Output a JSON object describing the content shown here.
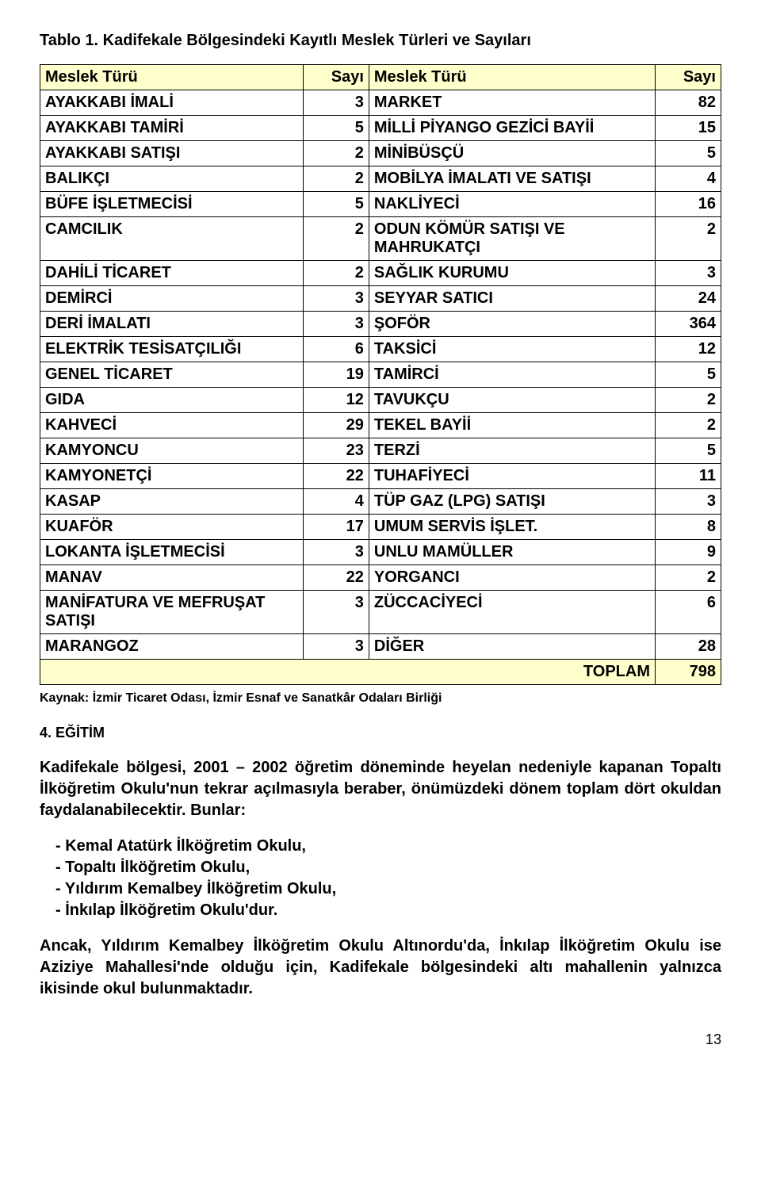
{
  "caption": "Tablo 1. Kadifekale Bölgesindeki Kayıtlı Meslek Türleri ve Sayıları",
  "headers": [
    "Meslek Türü",
    "Sayı",
    "Meslek Türü",
    "Sayı"
  ],
  "rows": [
    [
      "AYAKKABI İMALİ",
      "3",
      "MARKET",
      "82"
    ],
    [
      "AYAKKABI TAMİRİ",
      "5",
      "MİLLİ PİYANGO GEZİCİ BAYİİ",
      "15"
    ],
    [
      "AYAKKABI SATIŞI",
      "2",
      "MİNİBÜSÇÜ",
      "5"
    ],
    [
      "BALIKÇI",
      "2",
      "MOBİLYA İMALATI VE SATIŞI",
      "4"
    ],
    [
      "BÜFE İŞLETMECİSİ",
      "5",
      "NAKLİYECİ",
      "16"
    ],
    [
      "CAMCILIK",
      "2",
      "ODUN KÖMÜR SATIŞI VE MAHRUKATÇI",
      "2"
    ],
    [
      "DAHİLİ TİCARET",
      "2",
      "SAĞLIK KURUMU",
      "3"
    ],
    [
      "DEMİRCİ",
      "3",
      "SEYYAR SATICI",
      "24"
    ],
    [
      "DERİ İMALATI",
      "3",
      "ŞOFÖR",
      "364"
    ],
    [
      "ELEKTRİK TESİSATÇILIĞI",
      "6",
      "TAKSİCİ",
      "12"
    ],
    [
      "GENEL TİCARET",
      "19",
      "TAMİRCİ",
      "5"
    ],
    [
      "GIDA",
      "12",
      "TAVUKÇU",
      "2"
    ],
    [
      "KAHVECİ",
      "29",
      "TEKEL BAYİİ",
      "2"
    ],
    [
      "KAMYONCU",
      "23",
      "TERZİ",
      "5"
    ],
    [
      "KAMYONETÇİ",
      "22",
      "TUHAFİYECİ",
      "11"
    ],
    [
      "KASAP",
      "4",
      "TÜP GAZ (LPG) SATIŞI",
      "3"
    ],
    [
      "KUAFÖR",
      "17",
      "UMUM SERVİS İŞLET.",
      "8"
    ],
    [
      "LOKANTA İŞLETMECİSİ",
      "3",
      "UNLU MAMÜLLER",
      "9"
    ],
    [
      "MANAV",
      "22",
      "YORGANCI",
      "2"
    ],
    [
      "MANİFATURA VE MEFRUŞAT SATIŞI",
      "3",
      "ZÜCCACİYECİ",
      "6"
    ],
    [
      "MARANGOZ",
      "3",
      "DİĞER",
      "28"
    ]
  ],
  "total_label": "TOPLAM",
  "total_value": "798",
  "source": "Kaynak: İzmir Ticaret Odası, İzmir Esnaf ve Sanatkâr Odaları Birliği",
  "section_title": "4. EĞİTİM",
  "para1": "Kadifekale bölgesi, 2001 – 2002 öğretim döneminde heyelan nedeniyle kapanan Topaltı İlköğretim Okulu'nun tekrar açılmasıyla beraber, önümüzdeki dönem toplam dört okuldan faydalanabilecektir. Bunlar:",
  "schools": [
    "Kemal Atatürk İlköğretim Okulu,",
    "Topaltı İlköğretim Okulu,",
    "Yıldırım Kemalbey İlköğretim Okulu,",
    "İnkılap İlköğretim Okulu'dur."
  ],
  "para2": "Ancak, Yıldırım Kemalbey İlköğretim Okulu Altınordu'da, İnkılap İlköğretim Okulu ise Aziziye Mahallesi'nde olduğu için, Kadifekale bölgesindeki altı mahallenin yalnızca ikisinde okul bulunmaktadır.",
  "page_number": "13"
}
